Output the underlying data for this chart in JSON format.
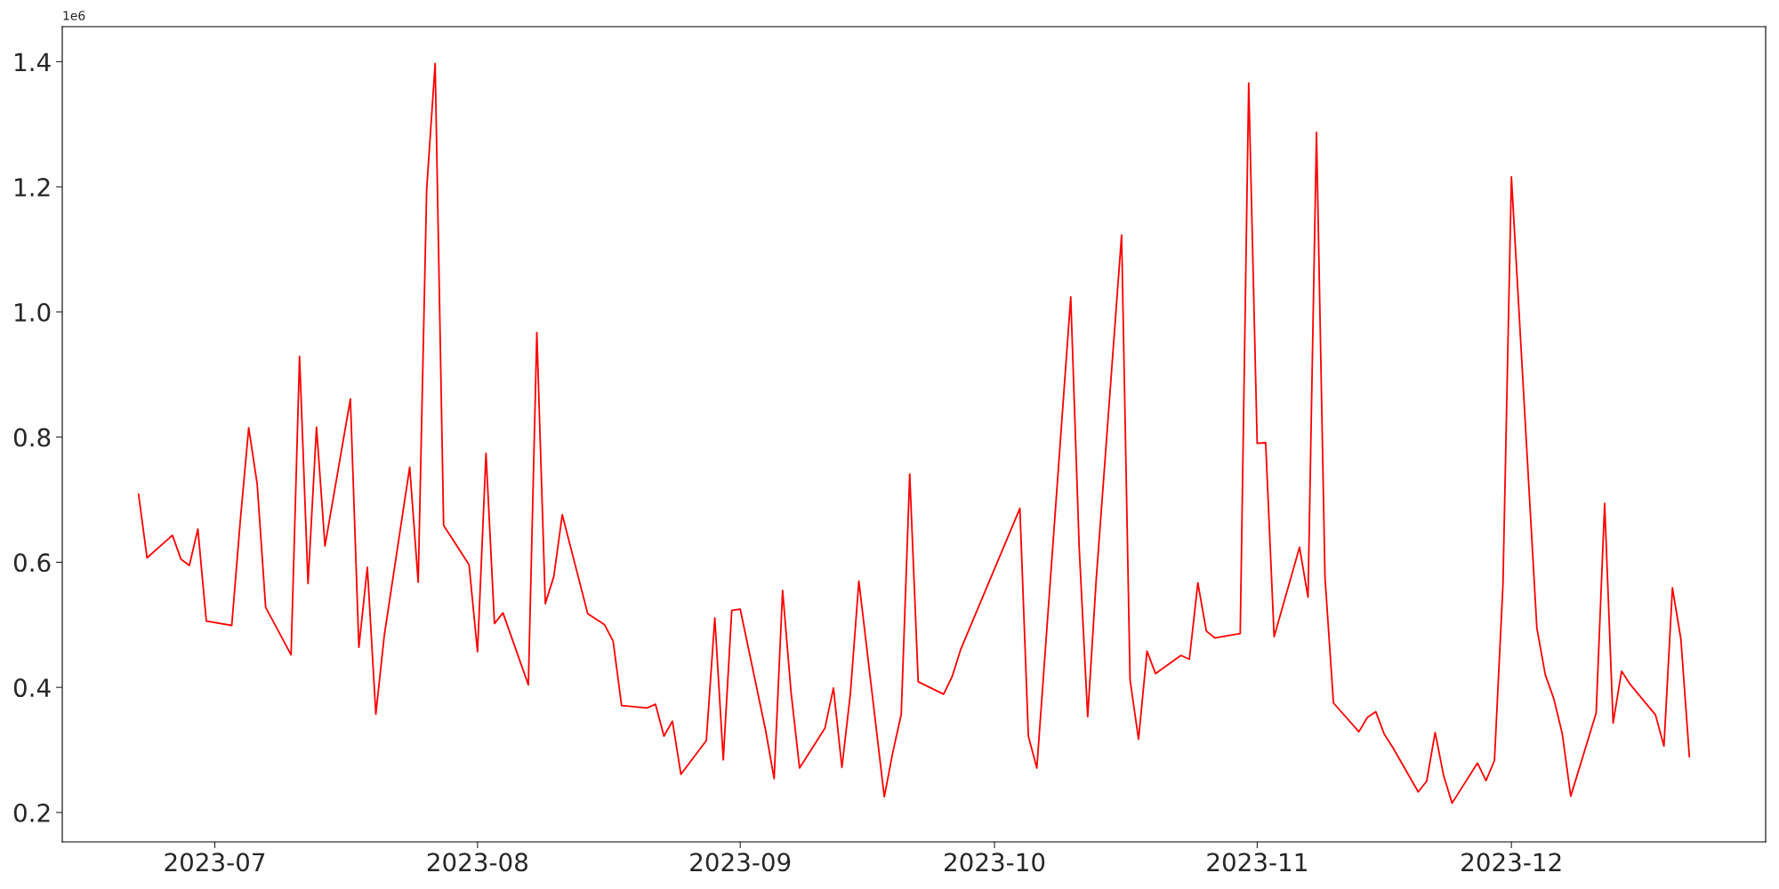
{
  "chart_data": {
    "type": "line",
    "x": [
      "2023-06-22",
      "2023-06-23",
      "2023-06-26",
      "2023-06-27",
      "2023-06-28",
      "2023-06-29",
      "2023-06-30",
      "2023-07-03",
      "2023-07-04",
      "2023-07-05",
      "2023-07-06",
      "2023-07-07",
      "2023-07-10",
      "2023-07-11",
      "2023-07-12",
      "2023-07-13",
      "2023-07-14",
      "2023-07-17",
      "2023-07-18",
      "2023-07-19",
      "2023-07-20",
      "2023-07-21",
      "2023-07-24",
      "2023-07-25",
      "2023-07-26",
      "2023-07-27",
      "2023-07-28",
      "2023-07-31",
      "2023-08-01",
      "2023-08-02",
      "2023-08-03",
      "2023-08-04",
      "2023-08-07",
      "2023-08-08",
      "2023-08-09",
      "2023-08-10",
      "2023-08-11",
      "2023-08-14",
      "2023-08-16",
      "2023-08-17",
      "2023-08-18",
      "2023-08-21",
      "2023-08-22",
      "2023-08-23",
      "2023-08-24",
      "2023-08-25",
      "2023-08-28",
      "2023-08-29",
      "2023-08-30",
      "2023-08-31",
      "2023-09-01",
      "2023-09-04",
      "2023-09-05",
      "2023-09-06",
      "2023-09-07",
      "2023-09-08",
      "2023-09-11",
      "2023-09-12",
      "2023-09-13",
      "2023-09-14",
      "2023-09-15",
      "2023-09-18",
      "2023-09-19",
      "2023-09-20",
      "2023-09-21",
      "2023-09-22",
      "2023-09-25",
      "2023-09-26",
      "2023-09-27",
      "2023-10-04",
      "2023-10-05",
      "2023-10-06",
      "2023-10-10",
      "2023-10-11",
      "2023-10-12",
      "2023-10-13",
      "2023-10-16",
      "2023-10-17",
      "2023-10-18",
      "2023-10-19",
      "2023-10-20",
      "2023-10-23",
      "2023-10-24",
      "2023-10-25",
      "2023-10-26",
      "2023-10-27",
      "2023-10-30",
      "2023-10-31",
      "2023-11-01",
      "2023-11-02",
      "2023-11-03",
      "2023-11-06",
      "2023-11-07",
      "2023-11-08",
      "2023-11-09",
      "2023-11-10",
      "2023-11-13",
      "2023-11-14",
      "2023-11-15",
      "2023-11-16",
      "2023-11-17",
      "2023-11-20",
      "2023-11-21",
      "2023-11-22",
      "2023-11-23",
      "2023-11-24",
      "2023-11-27",
      "2023-11-28",
      "2023-11-29",
      "2023-11-30",
      "2023-12-01",
      "2023-12-04",
      "2023-12-05",
      "2023-12-06",
      "2023-12-07",
      "2023-12-08",
      "2023-12-11",
      "2023-12-12",
      "2023-12-13",
      "2023-12-14",
      "2023-12-15",
      "2023-12-18",
      "2023-12-19",
      "2023-12-20",
      "2023-12-21",
      "2023-12-22"
    ],
    "series": [
      {
        "color": "#ff0000",
        "values": [
          0.709,
          0.607,
          0.643,
          0.605,
          0.595,
          0.653,
          0.506,
          0.499,
          0.665,
          0.815,
          0.725,
          0.528,
          0.452,
          0.929,
          0.566,
          0.816,
          0.626,
          0.861,
          0.464,
          0.592,
          0.357,
          0.483,
          0.752,
          0.568,
          1.196,
          1.397,
          0.659,
          0.596,
          0.457,
          0.774,
          0.502,
          0.519,
          0.404,
          0.967,
          0.534,
          0.577,
          0.676,
          0.518,
          0.5,
          0.474,
          0.371,
          0.367,
          0.373,
          0.322,
          0.346,
          0.261,
          0.315,
          0.511,
          0.284,
          0.523,
          0.525,
          0.331,
          0.254,
          0.555,
          0.392,
          0.271,
          0.335,
          0.399,
          0.272,
          0.39,
          0.57,
          0.225,
          0.296,
          0.357,
          0.741,
          0.409,
          0.389,
          0.417,
          0.46,
          0.686,
          0.322,
          0.271,
          1.024,
          0.623,
          0.353,
          0.571,
          1.123,
          0.412,
          0.317,
          0.458,
          0.422,
          0.451,
          0.445,
          0.567,
          0.49,
          0.479,
          0.486,
          1.366,
          0.79,
          0.791,
          0.481,
          0.624,
          0.544,
          1.287,
          0.576,
          0.375,
          0.329,
          0.352,
          0.361,
          0.325,
          0.304,
          0.233,
          0.25,
          0.328,
          0.259,
          0.215,
          0.279,
          0.251,
          0.283,
          0.563,
          1.216,
          0.495,
          0.42,
          0.382,
          0.326,
          0.226,
          0.359,
          0.694,
          0.343,
          0.426,
          0.405,
          0.356,
          0.306,
          0.559,
          0.477,
          0.289
        ]
      }
    ],
    "xlim": [
      "2023-06-13",
      "2023-12-31"
    ],
    "xticks": [
      {
        "value": "2023-07-01",
        "label": "2023-07"
      },
      {
        "value": "2023-08-01",
        "label": "2023-08"
      },
      {
        "value": "2023-09-01",
        "label": "2023-09"
      },
      {
        "value": "2023-10-01",
        "label": "2023-10"
      },
      {
        "value": "2023-11-01",
        "label": "2023-11"
      },
      {
        "value": "2023-12-01",
        "label": "2023-12"
      }
    ],
    "ylim": [
      0.153,
      1.456
    ],
    "yticks": [
      0.2,
      0.4,
      0.6,
      0.8,
      {
        "value": 1,
        "label": "1.0"
      },
      1.2,
      1.4
    ],
    "annotations": [
      "1e6"
    ],
    "grid": false,
    "marker": "none",
    "line_style": "solid"
  }
}
